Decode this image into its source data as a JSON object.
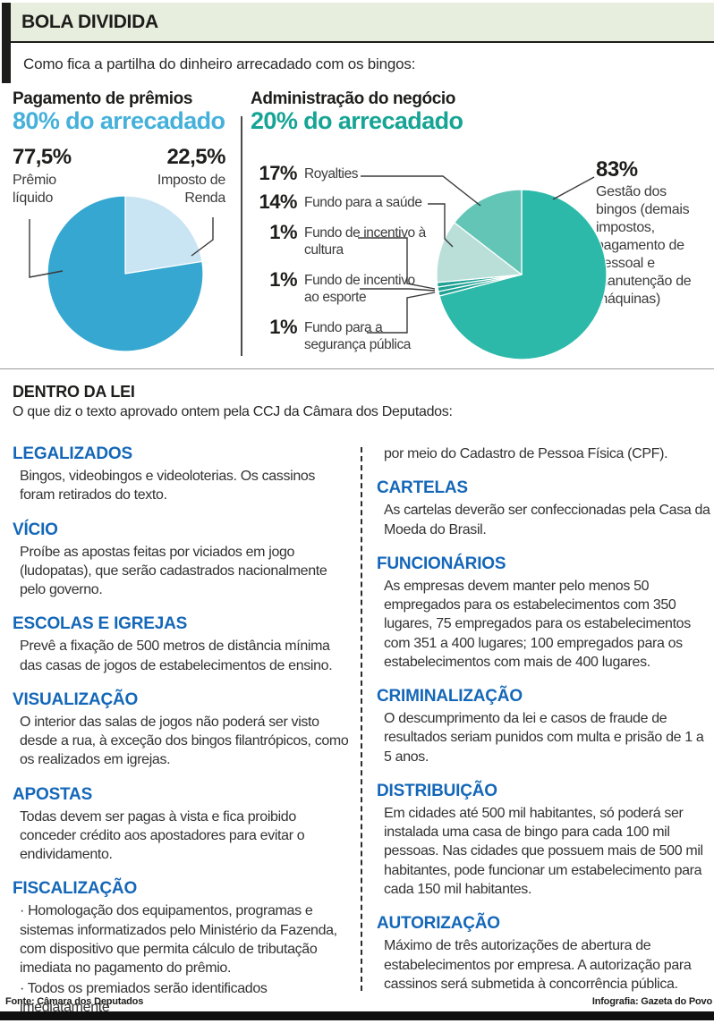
{
  "header": {
    "title": "BOLA DIVIDIDA",
    "subtitle": "Como fica a partilha do dinheiro arrecadado com os bingos:"
  },
  "colors": {
    "premios_accent": "#45b1da",
    "admin_accent": "#16a495",
    "heading_blue": "#1467b8",
    "pie1_dark": "#35a7d0",
    "pie1_light": "#c9e4f3",
    "pie2_main": "#2cb9a9",
    "pie2_sliver": "#1da294",
    "pie2_light": "#b9dfd8",
    "pie2_medium": "#63c5b6",
    "band_bg": "#e7eedd"
  },
  "charts": {
    "premios": {
      "title": "Pagamento de prêmios",
      "subtitle": "80% do arrecadado",
      "labels": [
        {
          "pct": "77,5%",
          "text": "Prêmio líquido"
        },
        {
          "pct": "22,5%",
          "text": "Imposto de Renda"
        }
      ]
    },
    "administracao": {
      "title": "Administração do negócio",
      "subtitle": "20% do arrecadado",
      "items": [
        {
          "pct": "17%",
          "label": "Royalties"
        },
        {
          "pct": "14%",
          "label": "Fundo para a saúde"
        },
        {
          "pct": "1%",
          "label": "Fundo de incentivo à cultura"
        },
        {
          "pct": "1%",
          "label": "Fundo de incentivo ao esporte"
        },
        {
          "pct": "1%",
          "label": "Fundo para a segurança pública"
        }
      ],
      "right_label": {
        "pct": "83%",
        "text": "Gestão dos bingos (demais impostos, pagamento de pessoal e manutenção de máquinas)"
      }
    }
  },
  "chart_data": [
    {
      "type": "pie",
      "title": "Pagamento de prêmios — 80% do arrecadado",
      "labels": [
        "Imposto de Renda",
        "Prêmio líquido"
      ],
      "values": [
        22.5,
        77.5
      ],
      "colors": [
        "#c9e4f3",
        "#35a7d0"
      ],
      "unit": "%",
      "start": "top",
      "direction": "clockwise"
    },
    {
      "type": "pie",
      "title": "Administração do negócio — 20% do arrecadado",
      "labels": [
        "Gestão dos bingos (demais impostos, pagamento de pessoal e manutenção de máquinas)",
        "Fundo para a segurança pública",
        "Fundo de incentivo ao esporte",
        "Fundo de incentivo à cultura",
        "Fundo para a saúde",
        "Royalties"
      ],
      "values": [
        83,
        1,
        1,
        1,
        14,
        17
      ],
      "colors": [
        "#2cb9a9",
        "#1da294",
        "#1da294",
        "#1da294",
        "#b9dfd8",
        "#63c5b6"
      ],
      "unit": "%",
      "start": "top",
      "direction": "clockwise"
    }
  ],
  "law": {
    "title": "DENTRO DA LEI",
    "intro": "O que diz o texto aprovado ontem pela CCJ da Câmara dos Deputados:",
    "left_sections": [
      {
        "heading": "LEGALIZADOS",
        "paragraphs": [
          "Bingos, videobingos e videoloterias. Os cassinos foram retirados do texto."
        ]
      },
      {
        "heading": "VÍCIO",
        "paragraphs": [
          "Proíbe as apostas feitas por viciados em jogo (ludopatas), que serão cadastrados nacionalmente pelo governo."
        ]
      },
      {
        "heading": "ESCOLAS E IGREJAS",
        "paragraphs": [
          "Prevê a fixação de 500 metros de distância mínima das casas de jogos de estabelecimentos de ensino."
        ]
      },
      {
        "heading": "VISUALIZAÇÃO",
        "paragraphs": [
          "O interior das salas de jogos não poderá ser visto desde a rua, à exceção dos bingos filantrópicos, como os realizados em igrejas."
        ]
      },
      {
        "heading": "APOSTAS",
        "paragraphs": [
          "Todas devem ser pagas à vista e fica proibido conceder crédito aos apostadores para evitar o endividamento."
        ]
      },
      {
        "heading": "FISCALIZAÇÃO",
        "paragraphs": [
          "· Homologação dos equipamentos, programas e sistemas informatizados pelo Ministério da Fazenda, com dispositivo que permita cálculo de tributação imediata no pagamento do prêmio.",
          "· Todos os premiados serão identificados imediatamente"
        ]
      }
    ],
    "right_sections": [
      {
        "heading": "",
        "paragraphs": [
          "por meio do Cadastro de Pessoa Física (CPF)."
        ]
      },
      {
        "heading": "CARTELAS",
        "paragraphs": [
          "As cartelas deverão ser confeccionadas pela Casa da Moeda do Brasil."
        ]
      },
      {
        "heading": "FUNCIONÁRIOS",
        "paragraphs": [
          "As empresas devem manter pelo menos 50 empregados para os estabelecimentos com 350 lugares, 75 empregados para os estabelecimentos com 351 a 400 lugares; 100 empregados para os estabelecimentos com mais de 400 lugares."
        ]
      },
      {
        "heading": "CRIMINALIZAÇÃO",
        "paragraphs": [
          "O descumprimento da lei e casos de fraude de resultados seriam punidos com multa e prisão de 1 a 5 anos."
        ]
      },
      {
        "heading": "DISTRIBUIÇÃO",
        "paragraphs": [
          "Em cidades até 500 mil habitantes, só poderá ser instalada uma casa de bingo para cada 100 mil pessoas. Nas cidades que possuem mais de 500 mil habitantes, pode funcionar um estabelecimento para cada 150 mil habitantes."
        ]
      },
      {
        "heading": "AUTORIZAÇÃO",
        "paragraphs": [
          "Máximo de três autorizações de abertura de estabelecimentos por empresa. A autorização para cassinos será submetida à concorrência pública."
        ]
      }
    ]
  },
  "footer": {
    "source": "Fonte: Câmara dos Deputados",
    "credit": "Infografia: Gazeta do Povo"
  }
}
